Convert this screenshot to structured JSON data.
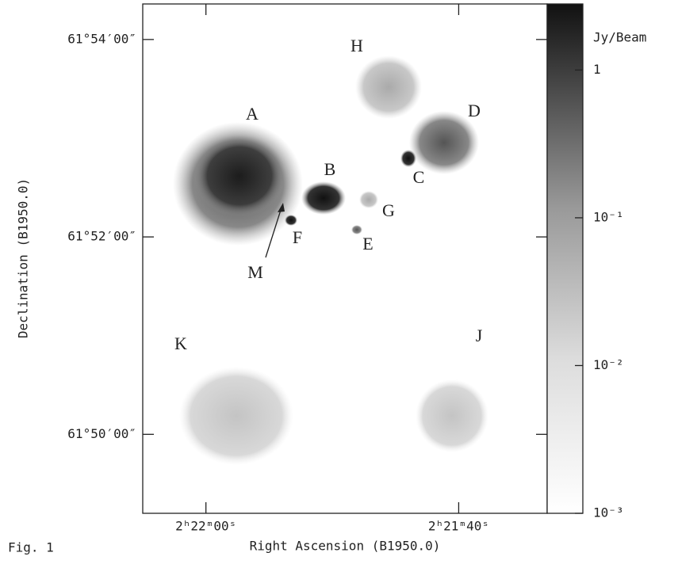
{
  "chart_data": {
    "type": "image",
    "caption": "Fig. 1",
    "x_label": "Right Ascension (B1950.0)",
    "y_label": "Declination (B1950.0)",
    "xlim": [
      65,
      33
    ],
    "ylim": [
      49.2,
      54.36
    ],
    "xticks": [
      {
        "value": 60,
        "label": "2ʰ22ᵐ00ˢ"
      },
      {
        "value": 40,
        "label": "2ʰ21ᵐ40ˢ"
      }
    ],
    "yticks": [
      {
        "value": 54,
        "label": "61°54′00″"
      },
      {
        "value": 52,
        "label": "61°52′00″"
      },
      {
        "value": 50,
        "label": "61°50′00″"
      }
    ],
    "colorbar": {
      "label": "Jy/Beam",
      "log_scale": true,
      "lim": [
        0.001,
        2.8
      ],
      "ticks": [
        {
          "value": 1,
          "label": "1"
        },
        {
          "value": 0.1,
          "label": "10⁻¹"
        },
        {
          "value": 0.01,
          "label": "10⁻²"
        },
        {
          "value": 0.001,
          "label": "10⁻³"
        }
      ]
    },
    "annotations": [
      "A",
      "B",
      "C",
      "D",
      "E",
      "F",
      "G",
      "H",
      "J",
      "K",
      "M"
    ]
  }
}
